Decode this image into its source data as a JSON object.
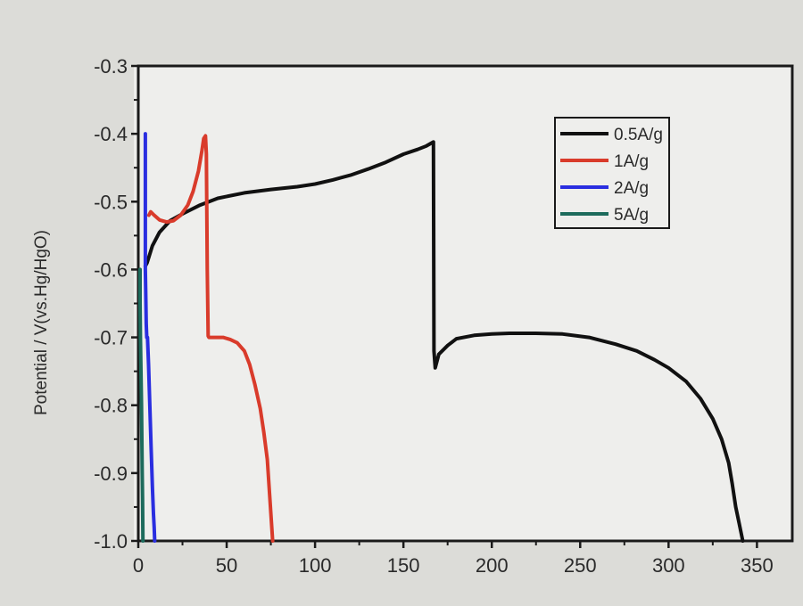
{
  "chart_data": {
    "type": "line",
    "title": "",
    "xlabel": "",
    "ylabel": "Potential / V(vs.Hg/HgO)",
    "xlim": [
      0,
      370
    ],
    "ylim": [
      -1.0,
      -0.3
    ],
    "x_ticks": [
      "0",
      "50",
      "100",
      "150",
      "200",
      "250",
      "300",
      "350"
    ],
    "y_ticks": [
      "-0.3",
      "-0.4",
      "-0.5",
      "-0.6",
      "-0.7",
      "-0.8",
      "-0.9",
      "-1.0"
    ],
    "legend_position": "top-right",
    "grid": false,
    "series": [
      {
        "name": "0.5A/g",
        "color": "#111111",
        "x": [
          4,
          5,
          8,
          12,
          18,
          25,
          35,
          45,
          60,
          75,
          90,
          100,
          110,
          120,
          130,
          140,
          150,
          158,
          163,
          167,
          167.3,
          168,
          170,
          175,
          180,
          190,
          200,
          210,
          225,
          240,
          255,
          270,
          282,
          292,
          300,
          310,
          318,
          325,
          330,
          334,
          336,
          338,
          340,
          342
        ],
        "y": [
          -0.595,
          -0.59,
          -0.565,
          -0.545,
          -0.528,
          -0.518,
          -0.505,
          -0.495,
          -0.487,
          -0.482,
          -0.478,
          -0.474,
          -0.468,
          -0.461,
          -0.452,
          -0.442,
          -0.43,
          -0.423,
          -0.418,
          -0.412,
          -0.72,
          -0.745,
          -0.725,
          -0.712,
          -0.702,
          -0.697,
          -0.695,
          -0.694,
          -0.694,
          -0.695,
          -0.7,
          -0.71,
          -0.72,
          -0.733,
          -0.745,
          -0.765,
          -0.79,
          -0.82,
          -0.85,
          -0.885,
          -0.915,
          -0.95,
          -0.975,
          -1.0
        ]
      },
      {
        "name": "1A/g",
        "color": "#d93b2b",
        "x": [
          6,
          7,
          9,
          12,
          16,
          20,
          24,
          28,
          31,
          34,
          36,
          37,
          38,
          38.5,
          39,
          39.5,
          40,
          42,
          45,
          48,
          52,
          56,
          60,
          63,
          66,
          69,
          71,
          73,
          74,
          75,
          76
        ],
        "y": [
          -0.52,
          -0.515,
          -0.52,
          -0.527,
          -0.53,
          -0.528,
          -0.52,
          -0.505,
          -0.485,
          -0.455,
          -0.425,
          -0.407,
          -0.403,
          -0.43,
          -0.6,
          -0.698,
          -0.7,
          -0.7,
          -0.7,
          -0.7,
          -0.703,
          -0.708,
          -0.72,
          -0.74,
          -0.77,
          -0.805,
          -0.84,
          -0.88,
          -0.92,
          -0.96,
          -1.0
        ]
      },
      {
        "name": "2A/g",
        "color": "#2a2ee0",
        "x": [
          4,
          4,
          4.2,
          4.5,
          4.8,
          5.2,
          5.8,
          6.5,
          7.2,
          8,
          8.6,
          9,
          9.3
        ],
        "y": [
          -0.4,
          -0.6,
          -0.63,
          -0.68,
          -0.7,
          -0.7,
          -0.74,
          -0.8,
          -0.86,
          -0.92,
          -0.96,
          -0.98,
          -1.0
        ]
      },
      {
        "name": "5A/g",
        "color": "#1d6b5c",
        "x": [
          1,
          1,
          1.2,
          1.5,
          1.8,
          2,
          2.2,
          2.4,
          2.5,
          2.6
        ],
        "y": [
          -0.6,
          -0.65,
          -0.7,
          -0.75,
          -0.8,
          -0.85,
          -0.9,
          -0.94,
          -0.97,
          -1.0
        ]
      }
    ]
  }
}
